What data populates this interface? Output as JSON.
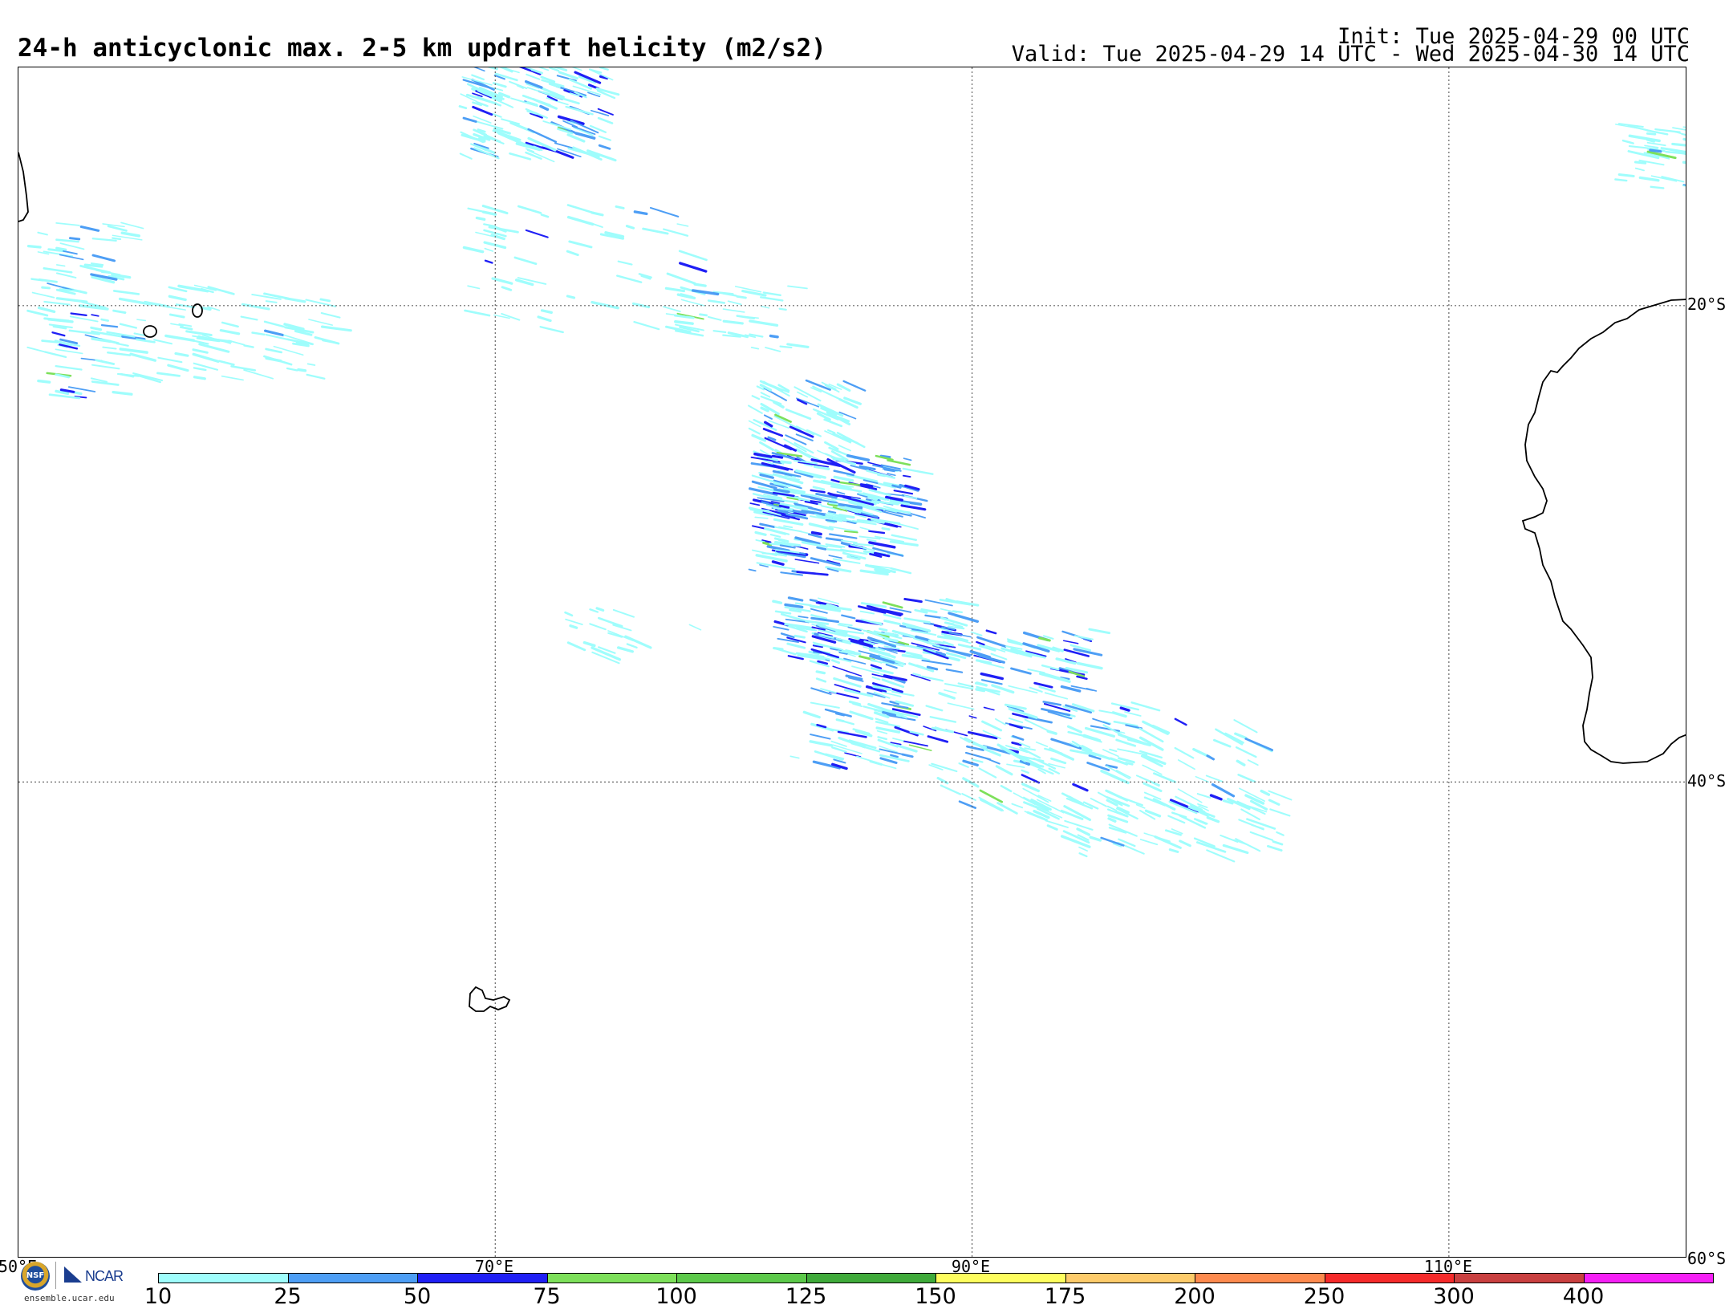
{
  "header": {
    "title": "24-h anticyclonic max. 2-5 km updraft helicity (m2/s2)",
    "init": "Init: Tue 2025-04-29 00 UTC",
    "valid": "Valid: Tue 2025-04-29 14 UTC - Wed 2025-04-30 14 UTC"
  },
  "map": {
    "projection": "lat-lon",
    "lon_range": [
      50,
      120
    ],
    "lat_range": [
      -60,
      -10
    ],
    "lon_labels": [
      "50°E",
      "70°E",
      "90°E",
      "110°E"
    ],
    "lat_labels": [
      "20°S",
      "40°S",
      "60°S"
    ],
    "grid": "dotted",
    "coastline_color": "#000000"
  },
  "colorbar": {
    "ticks": [
      "10",
      "25",
      "50",
      "75",
      "100",
      "125",
      "150",
      "175",
      "200",
      "250",
      "300",
      "400"
    ],
    "colors": [
      "#9ffdfc",
      "#4d9ef5",
      "#1f1ff5",
      "#7de05a",
      "#5cc94a",
      "#3faa3a",
      "#fefe5e",
      "#fdcb6a",
      "#fd8a4e",
      "#f52a2a",
      "#c94040",
      "#f51ff5"
    ]
  },
  "footer": {
    "nsf": "NSF",
    "ncar": "NCAR",
    "site": "ensemble.ucar.edu"
  }
}
